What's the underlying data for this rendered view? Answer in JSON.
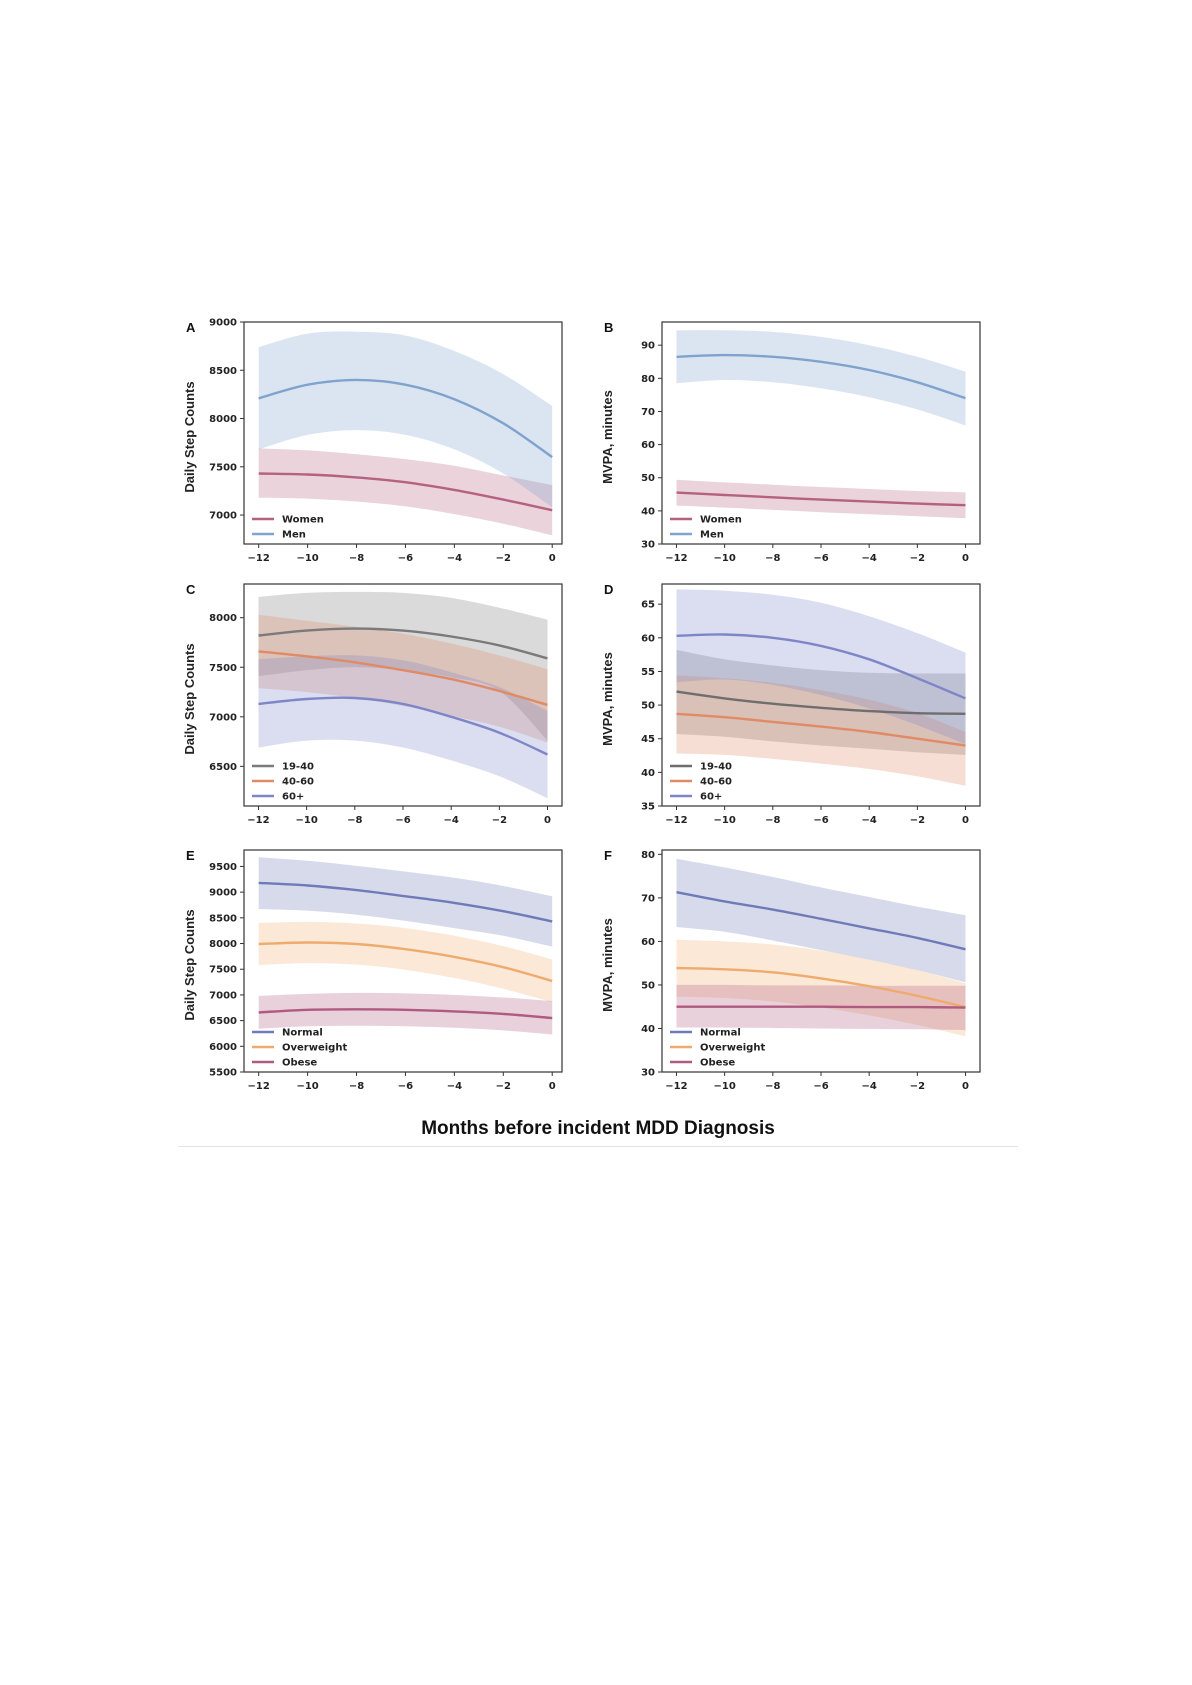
{
  "figure": {
    "x_title": "Months before incident MDD Diagnosis"
  },
  "chart_data": [
    {
      "panel": "A",
      "type": "line",
      "xlabel": "Months before incident MDD Diagnosis",
      "ylabel": "Daily Step Counts",
      "x": [
        -12,
        -10,
        -8,
        -6,
        -4,
        -2,
        0
      ],
      "xticks": [
        -12,
        -10,
        -8,
        -6,
        -4,
        -2,
        0
      ],
      "xlim": [
        -12.6,
        0.4
      ],
      "ylim": [
        6700,
        9000
      ],
      "yticks": [
        7000,
        7500,
        8000,
        8500,
        9000
      ],
      "legend_position": "lower left",
      "series": [
        {
          "name": "Women",
          "color": "#b5617f",
          "band": "#e8c4d1",
          "values": [
            7430,
            7420,
            7390,
            7340,
            7260,
            7160,
            7050
          ],
          "lower": [
            7180,
            7170,
            7140,
            7090,
            7010,
            6910,
            6790
          ],
          "upper": [
            7690,
            7670,
            7630,
            7580,
            7510,
            7410,
            7310
          ]
        },
        {
          "name": "Men",
          "color": "#7fa3cc",
          "band": "#d5e0ef",
          "values": [
            8210,
            8350,
            8400,
            8350,
            8200,
            7950,
            7600
          ],
          "lower": [
            7680,
            7830,
            7880,
            7830,
            7680,
            7430,
            7080
          ],
          "upper": [
            8740,
            8880,
            8900,
            8860,
            8700,
            8460,
            8130
          ]
        }
      ]
    },
    {
      "panel": "B",
      "type": "line",
      "xlabel": "Months before incident MDD Diagnosis",
      "ylabel": "MVPA, minutes",
      "x": [
        -12,
        -10,
        -8,
        -6,
        -4,
        -2,
        0
      ],
      "xticks": [
        -12,
        -10,
        -8,
        -6,
        -4,
        -2,
        0
      ],
      "xlim": [
        -12.6,
        0.6
      ],
      "ylim": [
        30,
        97
      ],
      "yticks": [
        30,
        40,
        50,
        60,
        70,
        80,
        90
      ],
      "legend_position": "lower left",
      "series": [
        {
          "name": "Women",
          "color": "#b5617f",
          "band": "#ecd0da",
          "values": [
            45.5,
            44.8,
            44.1,
            43.4,
            42.8,
            42.2,
            41.7
          ],
          "lower": [
            41.6,
            41.0,
            40.3,
            39.6,
            39.0,
            38.4,
            37.8
          ],
          "upper": [
            49.4,
            48.6,
            47.9,
            47.2,
            46.6,
            46.0,
            45.6
          ]
        },
        {
          "name": "Men",
          "color": "#7fa3cc",
          "band": "#d9e3f0",
          "values": [
            86.5,
            87.0,
            86.5,
            85.0,
            82.5,
            78.8,
            74.0
          ],
          "lower": [
            78.5,
            79.5,
            78.8,
            77.0,
            74.3,
            70.6,
            65.8
          ],
          "upper": [
            94.5,
            94.5,
            94.0,
            92.5,
            90.0,
            86.5,
            82.0
          ]
        }
      ]
    },
    {
      "panel": "C",
      "type": "line",
      "xlabel": "Months before incident MDD Diagnosis",
      "ylabel": "Daily Step Counts",
      "x": [
        -12,
        -10,
        -8,
        -6,
        -4,
        -2,
        0
      ],
      "xticks": [
        -12,
        -10,
        -8,
        -6,
        -4,
        -2,
        0
      ],
      "xlim": [
        -12.6,
        0.6
      ],
      "ylim": [
        6100,
        8340
      ],
      "yticks": [
        6500,
        7000,
        7500,
        8000
      ],
      "legend_position": "lower left",
      "series": [
        {
          "name": "19-40",
          "color": "#7a7a7a",
          "band": "#d8d8d8",
          "values": [
            7820,
            7870,
            7890,
            7870,
            7810,
            7720,
            7590
          ],
          "lower": [
            7410,
            7470,
            7500,
            7470,
            7400,
            7260,
            6760
          ],
          "upper": [
            8210,
            8250,
            8260,
            8250,
            8200,
            8100,
            7980
          ]
        },
        {
          "name": "40-60",
          "color": "#e08a66",
          "band": "#f2cfc2",
          "values": [
            7660,
            7610,
            7550,
            7470,
            7380,
            7260,
            7120
          ],
          "lower": [
            7290,
            7250,
            7190,
            7110,
            7010,
            6900,
            6740
          ],
          "upper": [
            8030,
            7970,
            7910,
            7840,
            7740,
            7620,
            7480
          ]
        },
        {
          "name": "60+",
          "color": "#7f86c8",
          "band": "#d3d6ee",
          "values": [
            7130,
            7180,
            7190,
            7130,
            7000,
            6840,
            6620
          ],
          "lower": [
            6690,
            6760,
            6760,
            6690,
            6560,
            6400,
            6180
          ],
          "upper": [
            7580,
            7610,
            7620,
            7570,
            7450,
            7300,
            7060
          ]
        }
      ]
    },
    {
      "panel": "D",
      "type": "line",
      "xlabel": "Months before incident MDD Diagnosis",
      "ylabel": "MVPA, minutes",
      "x": [
        -12,
        -10,
        -8,
        -6,
        -4,
        -2,
        0
      ],
      "xticks": [
        -12,
        -10,
        -8,
        -6,
        -4,
        -2,
        0
      ],
      "xlim": [
        -12.6,
        0.6
      ],
      "ylim": [
        35,
        68
      ],
      "yticks": [
        35,
        40,
        45,
        50,
        55,
        60,
        65
      ],
      "legend_position": "lower left",
      "series": [
        {
          "name": "19-40",
          "color": "#6e6e6e",
          "band": "#c9ccd8",
          "values": [
            52.0,
            51.0,
            50.2,
            49.6,
            49.1,
            48.8,
            48.7
          ],
          "lower": [
            45.7,
            45.3,
            44.6,
            44.0,
            43.5,
            43.0,
            42.6
          ],
          "upper": [
            58.2,
            56.8,
            55.9,
            55.2,
            54.8,
            54.7,
            54.7
          ]
        },
        {
          "name": "40-60",
          "color": "#e08a66",
          "band": "#f5d4c8",
          "values": [
            48.7,
            48.2,
            47.5,
            46.8,
            46.0,
            45.0,
            44.0
          ],
          "lower": [
            42.8,
            42.6,
            42.0,
            41.3,
            40.5,
            39.4,
            38.0
          ],
          "upper": [
            54.4,
            54.0,
            53.3,
            52.2,
            50.8,
            48.8,
            46.0
          ]
        },
        {
          "name": "60+",
          "color": "#7f86c8",
          "band": "#d5d8ee",
          "values": [
            60.3,
            60.5,
            60.0,
            58.8,
            56.8,
            54.0,
            51.0
          ],
          "lower": [
            53.4,
            53.8,
            53.0,
            51.5,
            49.5,
            47.0,
            44.2
          ],
          "upper": [
            67.2,
            67.0,
            66.4,
            65.2,
            63.2,
            60.7,
            57.8
          ]
        }
      ]
    },
    {
      "panel": "E",
      "type": "line",
      "xlabel": "Months before incident MDD Diagnosis",
      "ylabel": "Daily Step Counts",
      "x": [
        -12,
        -10,
        -8,
        -6,
        -4,
        -2,
        0
      ],
      "xticks": [
        -12,
        -10,
        -8,
        -6,
        -4,
        -2,
        0
      ],
      "xlim": [
        -12.6,
        0.4
      ],
      "ylim": [
        5500,
        9820
      ],
      "yticks": [
        5500,
        6000,
        6500,
        7000,
        7500,
        8000,
        8500,
        9000,
        9500
      ],
      "legend_position": "lower left",
      "series": [
        {
          "name": "Normal",
          "color": "#6f7ab8",
          "band": "#d3d6ea",
          "values": [
            9180,
            9130,
            9040,
            8920,
            8790,
            8630,
            8430
          ],
          "lower": [
            8670,
            8640,
            8560,
            8440,
            8300,
            8150,
            7940
          ],
          "upper": [
            9680,
            9610,
            9510,
            9400,
            9280,
            9120,
            8920
          ]
        },
        {
          "name": "Overweight",
          "color": "#efab6e",
          "band": "#f9e0c8",
          "values": [
            7990,
            8020,
            7990,
            7890,
            7740,
            7540,
            7270
          ],
          "lower": [
            7580,
            7620,
            7590,
            7490,
            7330,
            7120,
            6860
          ],
          "upper": [
            8400,
            8420,
            8390,
            8300,
            8150,
            7950,
            7690
          ]
        },
        {
          "name": "Obese",
          "color": "#b05a7f",
          "band": "#e6c4d2",
          "values": [
            6660,
            6710,
            6720,
            6710,
            6680,
            6630,
            6550
          ],
          "lower": [
            6340,
            6390,
            6400,
            6390,
            6360,
            6310,
            6230
          ],
          "upper": [
            6980,
            7020,
            7040,
            7030,
            7000,
            6950,
            6880
          ]
        }
      ]
    },
    {
      "panel": "F",
      "type": "line",
      "xlabel": "Months before incident MDD Diagnosis",
      "ylabel": "MVPA, minutes",
      "x": [
        -12,
        -10,
        -8,
        -6,
        -4,
        -2,
        0
      ],
      "xticks": [
        -12,
        -10,
        -8,
        -6,
        -4,
        -2,
        0
      ],
      "xlim": [
        -12.6,
        0.6
      ],
      "ylim": [
        30,
        81
      ],
      "yticks": [
        30,
        40,
        50,
        60,
        70,
        80
      ],
      "legend_position": "lower left",
      "series": [
        {
          "name": "Normal",
          "color": "#6f7ab8",
          "band": "#d3d6ea",
          "values": [
            71.3,
            69.2,
            67.3,
            65.2,
            63.0,
            60.8,
            58.2
          ],
          "lower": [
            63.3,
            62.2,
            60.2,
            58.0,
            55.8,
            53.4,
            50.6
          ],
          "upper": [
            79.0,
            77.0,
            74.8,
            72.4,
            70.2,
            68.0,
            66.0
          ]
        },
        {
          "name": "Overweight",
          "color": "#efab6e",
          "band": "#f9e0c8",
          "values": [
            53.9,
            53.6,
            52.9,
            51.5,
            49.7,
            47.5,
            44.9
          ],
          "lower": [
            47.3,
            47.0,
            46.2,
            44.8,
            43.0,
            40.8,
            38.2
          ],
          "upper": [
            60.4,
            60.0,
            59.3,
            57.9,
            55.8,
            53.4,
            50.4
          ]
        },
        {
          "name": "Obese",
          "color": "#b05a7f",
          "band": "#e6c4d2",
          "values": [
            45.0,
            45.0,
            45.0,
            45.0,
            44.9,
            44.9,
            44.8
          ],
          "lower": [
            40.2,
            40.2,
            40.1,
            40.0,
            39.9,
            39.8,
            39.6
          ],
          "upper": [
            50.0,
            50.0,
            49.9,
            49.9,
            49.8,
            49.8,
            49.8
          ]
        }
      ]
    }
  ],
  "panels": [
    {
      "letter": "A",
      "ylabel": "Daily Step Counts",
      "legend": [
        "Women",
        "Men"
      ]
    },
    {
      "letter": "B",
      "ylabel": "MVPA, minutes",
      "legend": [
        "Women",
        "Men"
      ]
    },
    {
      "letter": "C",
      "ylabel": "Daily Step Counts",
      "legend": [
        "19-40",
        "40-60",
        "60+"
      ]
    },
    {
      "letter": "D",
      "ylabel": "MVPA, minutes",
      "legend": [
        "19-40",
        "40-60",
        "60+"
      ]
    },
    {
      "letter": "E",
      "ylabel": "Daily Step Counts",
      "legend": [
        "Normal",
        "Overweight",
        "Obese"
      ]
    },
    {
      "letter": "F",
      "ylabel": "MVPA, minutes",
      "legend": [
        "Normal",
        "Overweight",
        "Obese"
      ]
    }
  ]
}
